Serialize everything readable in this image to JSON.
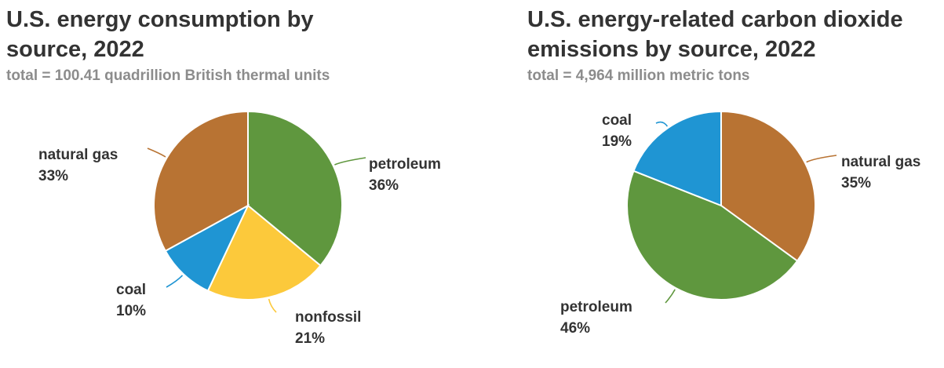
{
  "chart_data": [
    {
      "type": "pie",
      "title": "U.S. energy consumption by\nsource, 2022",
      "subtitle": "total = 100.41 quadrillion British thermal units",
      "slices": [
        {
          "name": "petroleum",
          "value": 36,
          "label": "36%",
          "color": "#5f973e"
        },
        {
          "name": "nonfossil",
          "value": 21,
          "label": "21%",
          "color": "#fcc93b"
        },
        {
          "name": "coal",
          "value": 10,
          "label": "10%",
          "color": "#1f95d3"
        },
        {
          "name": "natural gas",
          "value": 33,
          "label": "33%",
          "color": "#b87333"
        }
      ]
    },
    {
      "type": "pie",
      "title": "U.S. energy-related carbon dioxide\nemissions by source, 2022",
      "subtitle": "total = 4,964 million metric tons",
      "slices": [
        {
          "name": "natural gas",
          "value": 35,
          "label": "35%",
          "color": "#b87333"
        },
        {
          "name": "petroleum",
          "value": 46,
          "label": "46%",
          "color": "#5f973e"
        },
        {
          "name": "coal",
          "value": 19,
          "label": "19%",
          "color": "#1f95d3"
        }
      ]
    }
  ]
}
